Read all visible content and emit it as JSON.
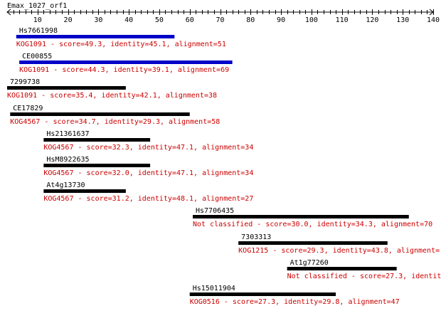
{
  "query": {
    "name": "Emax_1027_orf1",
    "axis_min": 0,
    "axis_max": 140,
    "ticks": [
      10,
      20,
      30,
      40,
      50,
      60,
      70,
      80,
      90,
      100,
      110,
      120,
      130,
      140
    ]
  },
  "colors": {
    "axis": "#000000",
    "bar_default": "#000000",
    "bar_highlight": "#0000c8",
    "label": "#000000",
    "detail": "#cc0000"
  },
  "hits": [
    {
      "name": "Hs7661998",
      "detail": "KOG1091 - score=49.3, identity=45.1, alignment=51",
      "start": 3,
      "end": 55,
      "highlight": true
    },
    {
      "name": "CE00855",
      "detail": "KOG1091 - score=44.3, identity=39.1, alignment=69",
      "start": 4,
      "end": 74,
      "highlight": true
    },
    {
      "name": "7299738",
      "detail": "KOG1091 - score=35.4, identity=42.1, alignment=38",
      "start": 0,
      "end": 39,
      "highlight": false
    },
    {
      "name": "CE17829",
      "detail": "KOG4567 - score=34.7, identity=29.3, alignment=58",
      "start": 1,
      "end": 60,
      "highlight": false
    },
    {
      "name": "Hs21361637",
      "detail": "KOG4567 - score=32.3, identity=47.1, alignment=34",
      "start": 12,
      "end": 47,
      "highlight": false
    },
    {
      "name": "HsM8922635",
      "detail": "KOG4567 - score=32.0, identity=47.1, alignment=34",
      "start": 12,
      "end": 47,
      "highlight": false
    },
    {
      "name": "At4g13730",
      "detail": "KOG4567 - score=31.2, identity=48.1, alignment=27",
      "start": 12,
      "end": 39,
      "highlight": false
    },
    {
      "name": "Hs7706435",
      "detail": "Not classified - score=30.0, identity=34.3, alignment=70",
      "start": 61,
      "end": 132,
      "highlight": false
    },
    {
      "name": "7303313",
      "detail": "KOG1215 - score=29.3, identity=43.8, alignment=",
      "start": 76,
      "end": 125,
      "highlight": false
    },
    {
      "name": "At1g77260",
      "detail": "Not classified - score=27.3, identit",
      "start": 92,
      "end": 128,
      "highlight": false
    },
    {
      "name": "Hs15011904",
      "detail": "KOG0516 - score=27.3, identity=29.8, alignment=47",
      "start": 60,
      "end": 108,
      "highlight": false
    }
  ]
}
